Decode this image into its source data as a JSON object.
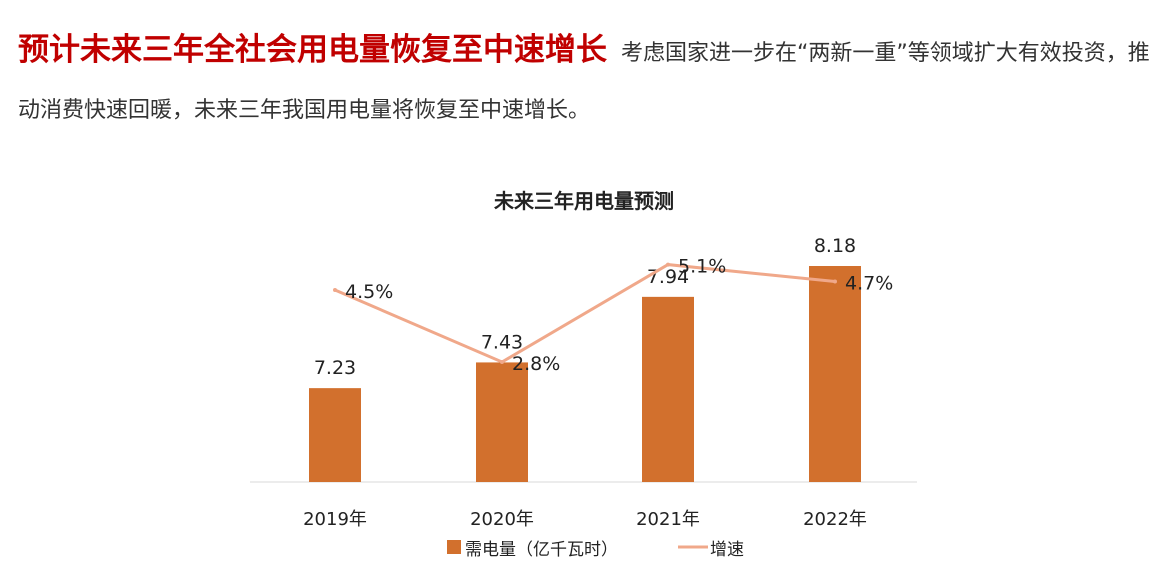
{
  "header": {
    "title": "预计未来三年全社会用电量恢复至中速增长",
    "description": "考虑国家进一步在“两新一重”等领域扩大有效投资，推动消费快速回暖，未来三年我国用电量将恢复至中速增长。"
  },
  "chart_data": {
    "type": "bar",
    "title": "未来三年用电量预测",
    "categories": [
      "2019年",
      "2020年",
      "2021年",
      "2022年"
    ],
    "series": [
      {
        "name": "需电量（亿千瓦时）",
        "type": "bar",
        "values": [
          7.23,
          7.43,
          7.94,
          8.18
        ],
        "labels": [
          "7.23",
          "7.43",
          "7.94",
          "8.18"
        ],
        "color": "#d2702d"
      },
      {
        "name": "增速",
        "type": "line",
        "values": [
          4.5,
          2.8,
          5.1,
          4.7
        ],
        "labels": [
          "4.5%",
          "2.8%",
          "5.1%",
          "4.7%"
        ],
        "color": "#f0a88a"
      }
    ],
    "legend": "bottom",
    "grid": false
  }
}
